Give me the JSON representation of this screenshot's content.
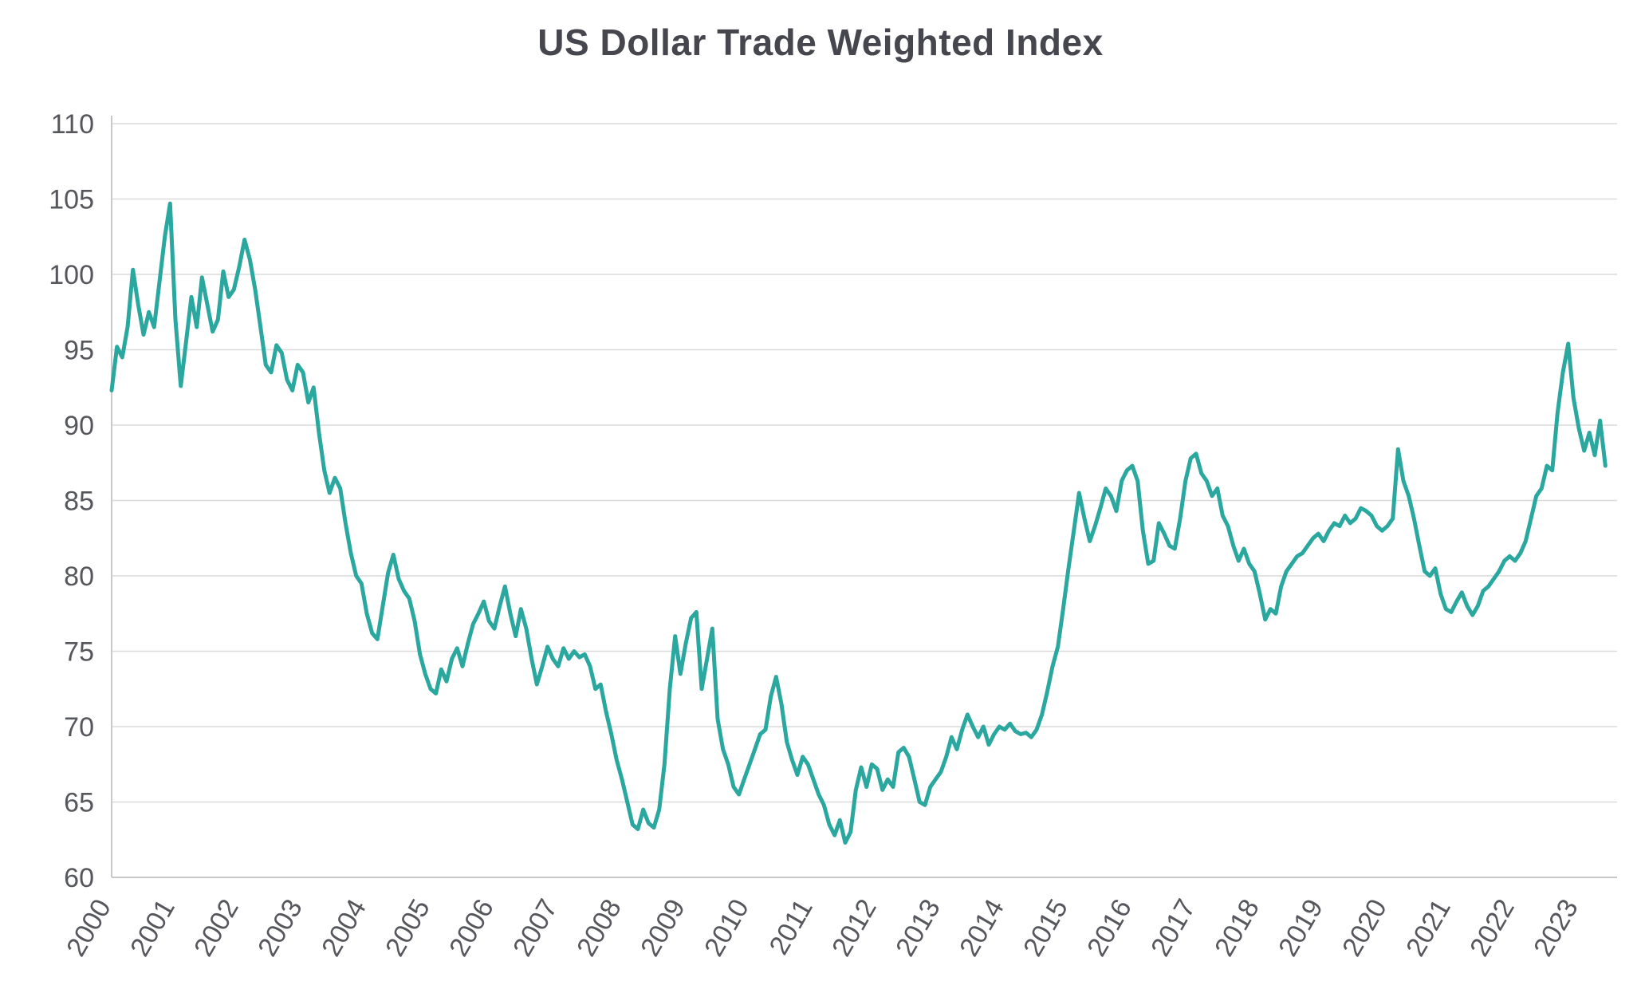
{
  "page": {
    "background": "#ffffff"
  },
  "chart_data": {
    "type": "line",
    "title": "US Dollar Trade Weighted Index",
    "series_name": "US Dollar Trade Weighted Index",
    "line_color": "#2aa79e",
    "grid_color": "#dadada",
    "spine_color": "#c8c8c8",
    "label_color": "#55575c",
    "title_color": "#45464e",
    "grid": "horizontal",
    "legend": "none",
    "ylim": [
      60,
      110
    ],
    "yticks": [
      60,
      65,
      70,
      75,
      80,
      85,
      90,
      95,
      100,
      105,
      110
    ],
    "x_start_year": 2000,
    "x_axis_max": 2023.6,
    "points_per_year": 12,
    "xtick_labels": [
      "2000",
      "2001",
      "2002",
      "2003",
      "2004",
      "2005",
      "2006",
      "2007",
      "2008",
      "2009",
      "2010",
      "2011",
      "2012",
      "2013",
      "2014",
      "2015",
      "2016",
      "2017",
      "2018",
      "2019",
      "2020",
      "2021",
      "2022",
      "2023"
    ],
    "values": [
      92.3,
      95.2,
      94.5,
      96.5,
      100.3,
      98.0,
      96.0,
      97.5,
      96.5,
      99.5,
      102.5,
      104.7,
      97.0,
      92.6,
      95.5,
      98.5,
      96.5,
      99.8,
      98.0,
      96.2,
      97.0,
      100.2,
      98.5,
      99.0,
      100.5,
      102.3,
      101.0,
      99.0,
      96.5,
      94.0,
      93.5,
      95.3,
      94.8,
      93.0,
      92.3,
      94.0,
      93.5,
      91.5,
      92.5,
      89.5,
      87.0,
      85.5,
      86.5,
      85.8,
      83.5,
      81.5,
      80.0,
      79.5,
      77.5,
      76.2,
      75.8,
      78.0,
      80.2,
      81.4,
      79.8,
      79.0,
      78.5,
      77.0,
      74.8,
      73.5,
      72.5,
      72.2,
      73.8,
      73.0,
      74.5,
      75.2,
      74.0,
      75.5,
      76.8,
      77.5,
      78.3,
      77.0,
      76.5,
      78.0,
      79.3,
      77.5,
      76.0,
      77.8,
      76.5,
      74.5,
      72.8,
      74.0,
      75.3,
      74.5,
      74.0,
      75.2,
      74.5,
      75.0,
      74.6,
      74.8,
      74.0,
      72.5,
      72.8,
      71.0,
      69.5,
      67.8,
      66.5,
      65.0,
      63.5,
      63.2,
      64.5,
      63.6,
      63.3,
      64.5,
      67.5,
      72.5,
      76.0,
      73.5,
      75.5,
      77.2,
      77.6,
      72.5,
      74.5,
      76.5,
      70.5,
      68.5,
      67.5,
      66.0,
      65.5,
      66.5,
      67.5,
      68.5,
      69.5,
      69.8,
      72.0,
      73.3,
      71.5,
      69.0,
      67.8,
      66.8,
      68.0,
      67.5,
      66.5,
      65.5,
      64.8,
      63.5,
      62.8,
      63.8,
      62.3,
      63.0,
      65.8,
      67.3,
      66.0,
      67.5,
      67.2,
      65.8,
      66.5,
      66.0,
      68.3,
      68.6,
      68.0,
      66.5,
      65.0,
      64.8,
      66.0,
      66.5,
      67.0,
      68.0,
      69.3,
      68.5,
      69.8,
      70.8,
      70.0,
      69.3,
      70.0,
      68.8,
      69.5,
      70.0,
      69.8,
      70.2,
      69.7,
      69.5,
      69.6,
      69.3,
      69.8,
      70.8,
      72.3,
      74.0,
      75.3,
      77.8,
      80.5,
      83.0,
      85.5,
      83.8,
      82.3,
      83.3,
      84.5,
      85.8,
      85.3,
      84.3,
      86.3,
      87.0,
      87.3,
      86.3,
      83.0,
      80.8,
      81.0,
      83.5,
      82.8,
      82.0,
      81.8,
      83.8,
      86.3,
      87.8,
      88.1,
      86.8,
      86.3,
      85.3,
      85.8,
      84.0,
      83.3,
      82.0,
      81.0,
      81.8,
      80.8,
      80.3,
      78.8,
      77.1,
      77.8,
      77.5,
      79.3,
      80.3,
      80.8,
      81.3,
      81.5,
      82.0,
      82.5,
      82.8,
      82.3,
      83.0,
      83.5,
      83.3,
      84.0,
      83.5,
      83.8,
      84.5,
      84.3,
      84.0,
      83.3,
      83.0,
      83.3,
      83.8,
      88.4,
      86.3,
      85.3,
      83.8,
      82.0,
      80.3,
      80.0,
      80.5,
      78.8,
      77.8,
      77.6,
      78.3,
      78.9,
      78.0,
      77.4,
      78.0,
      79.0,
      79.3,
      79.8,
      80.3,
      81.0,
      81.3,
      81.0,
      81.5,
      82.3,
      83.8,
      85.3,
      85.8,
      87.3,
      87.0,
      90.8,
      93.5,
      95.4,
      91.8,
      89.8,
      88.3,
      89.5,
      88.0,
      90.3,
      87.3
    ]
  }
}
